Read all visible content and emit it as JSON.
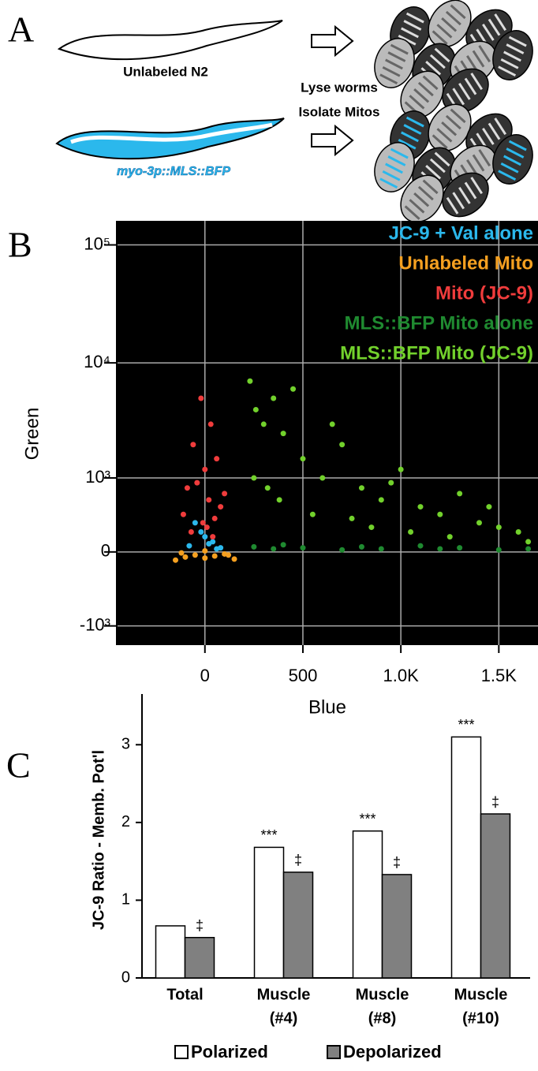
{
  "panel_a": {
    "label": "A",
    "worm_label_top": "Unlabeled N2",
    "worm_label_bottom": "myo-3p::MLS::BFP",
    "step_1": "Lyse worms",
    "step_2": "Isolate Mitos"
  },
  "chart_data": [
    {
      "type": "scatter",
      "panel_label": "B",
      "x_label": "Blue",
      "y_label": "Green",
      "yscale": "logicle",
      "grid": true,
      "legend": "upper right",
      "background": "#000000",
      "xlim": [
        -450,
        1700
      ],
      "xticks": [
        0,
        500,
        {
          "value": 1000,
          "label": "1.0K"
        },
        {
          "value": 1500,
          "label": "1.5K"
        }
      ],
      "ylim": [
        -1500,
        160000
      ],
      "yticks": [
        {
          "value": -1000,
          "label": "-10³"
        },
        0,
        {
          "value": 1000,
          "label": "10³"
        },
        {
          "value": 10000,
          "label": "10⁴"
        },
        {
          "value": 100000,
          "label": "10⁵"
        }
      ],
      "series": [
        {
          "name": "JC-9 + Val alone",
          "color": "#2bb8ec",
          "x": [
            -50,
            0,
            40,
            -80,
            80,
            20,
            -20,
            60
          ],
          "y": [
            300,
            150,
            100,
            60,
            40,
            80,
            200,
            30
          ]
        },
        {
          "name": "Unlabeled Mito",
          "color": "#f5a020",
          "x": [
            -150,
            -100,
            -50,
            0,
            50,
            100,
            150,
            -120,
            120,
            0
          ],
          "y": [
            -80,
            -50,
            -30,
            -60,
            -40,
            -20,
            -70,
            -10,
            -30,
            10
          ]
        },
        {
          "name": "Mito (JC-9)",
          "color": "#f03c3c",
          "x": [
            -20,
            30,
            -60,
            60,
            0,
            -90,
            100,
            -40,
            20,
            80,
            -110,
            50,
            -10,
            10,
            -70,
            40
          ],
          "y": [
            5000,
            3000,
            2000,
            1500,
            1200,
            800,
            700,
            900,
            600,
            500,
            400,
            350,
            300,
            250,
            200,
            150
          ]
        },
        {
          "name": "MLS::BFP Mito alone",
          "color": "#1f8a30",
          "x": [
            250,
            350,
            500,
            700,
            900,
            1100,
            1300,
            1500,
            1650,
            400,
            800,
            1200
          ],
          "y": [
            50,
            30,
            40,
            20,
            30,
            60,
            40,
            20,
            30,
            70,
            50,
            30
          ]
        },
        {
          "name": "MLS::BFP Mito (JC-9)",
          "color": "#72d12c",
          "x": [
            230,
            260,
            300,
            350,
            400,
            450,
            500,
            600,
            700,
            800,
            900,
            1000,
            1100,
            1200,
            1300,
            1400,
            1500,
            1600,
            250,
            320,
            380,
            550,
            650,
            750,
            850,
            950,
            1050,
            1250,
            1450,
            1650
          ],
          "y": [
            7000,
            4000,
            3000,
            5000,
            2500,
            6000,
            1500,
            1000,
            2000,
            800,
            600,
            1200,
            500,
            400,
            700,
            300,
            250,
            200,
            1000,
            800,
            600,
            400,
            3000,
            350,
            250,
            900,
            200,
            150,
            500,
            100
          ]
        }
      ]
    },
    {
      "type": "bar",
      "panel_label": "C",
      "y_label": "JC-9 Ratio - Memb. Pot'l",
      "legend": "bottom",
      "categories": [
        [
          "Total"
        ],
        [
          "Muscle",
          "(#4)"
        ],
        [
          "Muscle",
          "(#8)"
        ],
        [
          "Muscle",
          "(#10)"
        ]
      ],
      "ylim": [
        0,
        3.5
      ],
      "yticks": [
        0,
        1,
        2,
        3
      ],
      "series": [
        {
          "name": "Polarized",
          "color": "#ffffff",
          "values": [
            0.67,
            1.68,
            1.89,
            3.1
          ],
          "markers": [
            null,
            "***",
            "***",
            "***"
          ]
        },
        {
          "name": "Depolarized",
          "color": "#808080",
          "values": [
            0.52,
            1.36,
            1.33,
            2.11
          ],
          "markers": [
            "‡",
            "‡",
            "‡",
            "‡"
          ]
        }
      ]
    }
  ]
}
